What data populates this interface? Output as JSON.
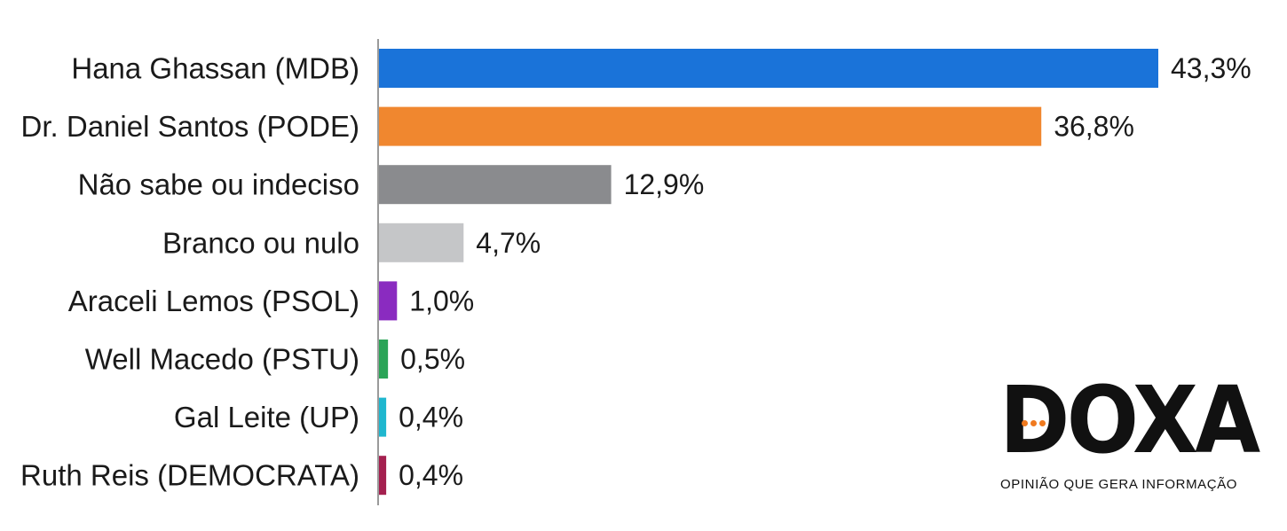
{
  "chart_data": {
    "type": "bar",
    "orientation": "horizontal",
    "categories": [
      "Hana Ghassan (MDB)",
      "Dr. Daniel Santos (PODE)",
      "Não sabe ou indeciso",
      "Branco ou nulo",
      "Araceli Lemos (PSOL)",
      "Well Macedo (PSTU)",
      "Gal Leite (UP)",
      "Ruth Reis (DEMOCRATA)"
    ],
    "values": [
      43.3,
      36.8,
      12.9,
      4.7,
      1.0,
      0.5,
      0.4,
      0.4
    ],
    "value_labels": [
      "43,3%",
      "36,8%",
      "12,9%",
      "4,7%",
      "1,0%",
      "0,5%",
      "0,4%",
      "0,4%"
    ],
    "colors": [
      "#1a73d9",
      "#f0872f",
      "#8a8b8e",
      "#c5c6c8",
      "#8a2bc0",
      "#2aa457",
      "#1fb7cf",
      "#a4204f"
    ],
    "xlim": [
      0,
      43.3
    ],
    "grid": false,
    "title": "",
    "xlabel": "",
    "ylabel": ""
  },
  "branding": {
    "logo_text": "DOXA",
    "tagline": "OPINIÃO QUE GERA INFORMAÇÃO",
    "accent_color": "#f07a1f"
  }
}
